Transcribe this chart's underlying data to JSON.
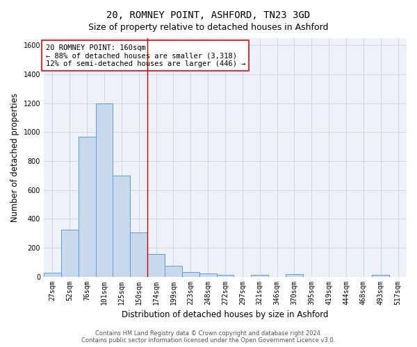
{
  "title": "20, ROMNEY POINT, ASHFORD, TN23 3GD",
  "subtitle": "Size of property relative to detached houses in Ashford",
  "xlabel": "Distribution of detached houses by size in Ashford",
  "ylabel": "Number of detached properties",
  "footer_line1": "Contains HM Land Registry data © Crown copyright and database right 2024.",
  "footer_line2": "Contains public sector information licensed under the Open Government Licence v3.0.",
  "annotation_line1": "20 ROMNEY POINT: 160sqm",
  "annotation_line2": "← 88% of detached houses are smaller (3,318)",
  "annotation_line3": "12% of semi-detached houses are larger (446) →",
  "bar_labels": [
    "27sqm",
    "52sqm",
    "76sqm",
    "101sqm",
    "125sqm",
    "150sqm",
    "174sqm",
    "199sqm",
    "223sqm",
    "248sqm",
    "272sqm",
    "297sqm",
    "321sqm",
    "346sqm",
    "370sqm",
    "395sqm",
    "419sqm",
    "444sqm",
    "468sqm",
    "493sqm",
    "517sqm"
  ],
  "bar_values": [
    25,
    325,
    970,
    1200,
    700,
    305,
    155,
    75,
    30,
    20,
    12,
    0,
    10,
    0,
    15,
    0,
    0,
    0,
    0,
    10,
    0
  ],
  "bar_color": "#c9d9ed",
  "bar_edge_color": "#5b9bd5",
  "grid_color": "#d0d8e8",
  "background_color": "#eef2f8",
  "vline_x": 5.5,
  "vline_color": "#cc0000",
  "ylim": [
    0,
    1650
  ],
  "yticks": [
    0,
    200,
    400,
    600,
    800,
    1000,
    1200,
    1400,
    1600
  ],
  "annotation_box_color": "white",
  "annotation_box_edgecolor": "red",
  "title_fontsize": 10,
  "subtitle_fontsize": 9,
  "axis_label_fontsize": 8.5,
  "tick_fontsize": 7,
  "annotation_fontsize": 7.5,
  "footer_fontsize": 6
}
